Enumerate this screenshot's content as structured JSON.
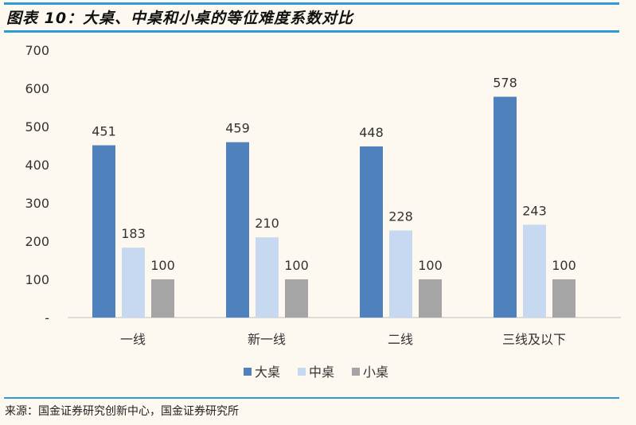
{
  "title": "图表 10：大桌、中桌和小桌的等位难度系数对比",
  "source": "来源：国金证券研究创新中心，国金证券研究所",
  "chart_data": {
    "type": "bar",
    "title": "",
    "categories": [
      "一线",
      "新一线",
      "二线",
      "三线及以下"
    ],
    "series": [
      {
        "name": "大桌",
        "values": [
          451,
          459,
          448,
          578
        ],
        "color": "#4f81bd"
      },
      {
        "name": "中桌",
        "values": [
          183,
          210,
          228,
          243
        ],
        "color": "#c6d9f1"
      },
      {
        "name": "小桌",
        "values": [
          100,
          100,
          100,
          100
        ],
        "color": "#a5a5a5"
      }
    ],
    "ylim": [
      0,
      700
    ],
    "yticks": [
      "-",
      "100",
      "200",
      "300",
      "400",
      "500",
      "600",
      "700"
    ],
    "grid": false,
    "legend": "bottom",
    "data_labels": true
  }
}
